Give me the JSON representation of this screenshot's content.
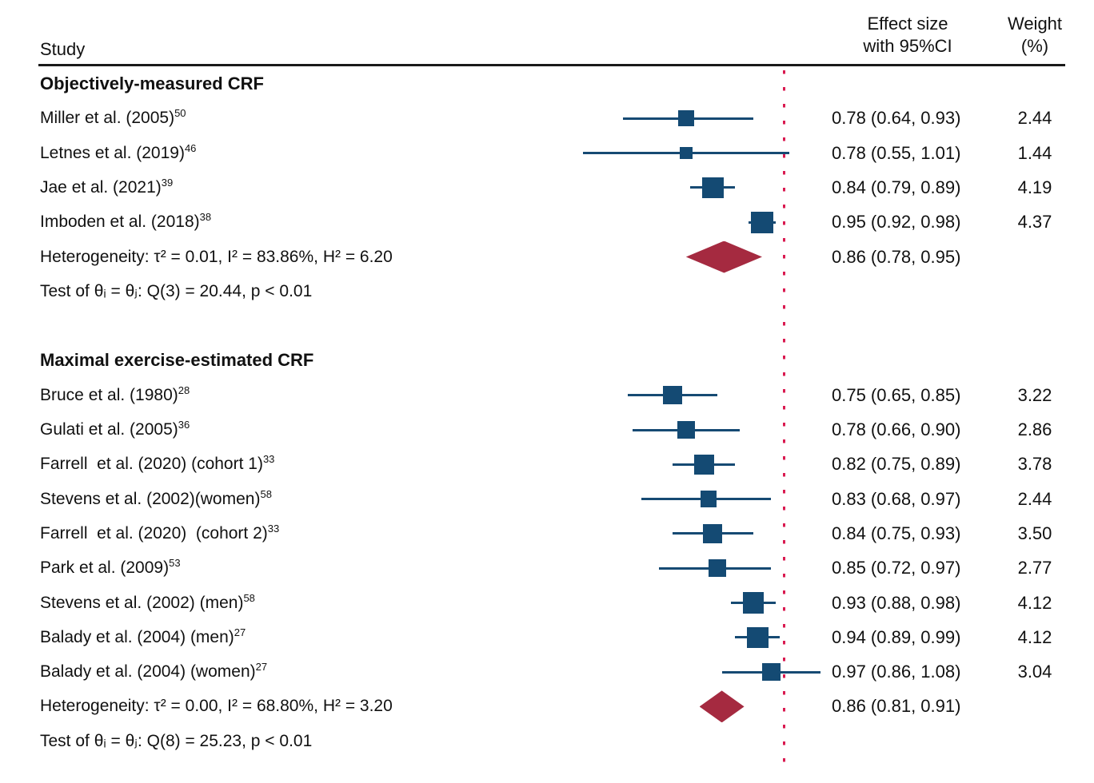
{
  "header": {
    "study_col": "Study",
    "effect_col_line1": "Effect size",
    "effect_col_line2": "with 95%CI",
    "weight_col_line1": "Weight",
    "weight_col_line2": "(%)"
  },
  "colors": {
    "square": "#144a73",
    "ci_line": "#164a73",
    "diamond": "#a52a40",
    "reference_line": "#d91a50",
    "rule": "#1a1a1a",
    "text": "#111111"
  },
  "chart_data": {
    "type": "forest",
    "x_reference_line": 1.0,
    "groups": [
      {
        "title": "Objectively-measured CRF",
        "studies": [
          {
            "label": "Miller et al. (2005)",
            "ref": "50",
            "est": 0.78,
            "lo": 0.64,
            "hi": 0.93,
            "effect": "0.78 (0.64, 0.93)",
            "weight": "2.44"
          },
          {
            "label": "Letnes et al. (2019)",
            "ref": "46",
            "est": 0.78,
            "lo": 0.55,
            "hi": 1.01,
            "effect": "0.78 (0.55, 1.01)",
            "weight": "1.44"
          },
          {
            "label": "Jae et al. (2021)",
            "ref": "39",
            "est": 0.84,
            "lo": 0.79,
            "hi": 0.89,
            "effect": "0.84 (0.79, 0.89)",
            "weight": "4.19"
          },
          {
            "label": "Imboden et al. (2018)",
            "ref": "38",
            "est": 0.95,
            "lo": 0.92,
            "hi": 0.98,
            "effect": "0.95 (0.92, 0.98)",
            "weight": "4.37"
          }
        ],
        "summary": {
          "label": "Heterogeneity: τ² = 0.01, I² = 83.86%, H² = 6.20",
          "est": 0.86,
          "lo": 0.78,
          "hi": 0.95,
          "effect": "0.86 (0.78, 0.95)"
        },
        "test": "Test of θᵢ = θⱼ: Q(3) = 20.44, p < 0.01"
      },
      {
        "title": "Maximal exercise-estimated CRF",
        "studies": [
          {
            "label": "Bruce et al. (1980)",
            "ref": "28",
            "est": 0.75,
            "lo": 0.65,
            "hi": 0.85,
            "effect": "0.75 (0.65, 0.85)",
            "weight": "3.22"
          },
          {
            "label": "Gulati et al. (2005)",
            "ref": "36",
            "est": 0.78,
            "lo": 0.66,
            "hi": 0.9,
            "effect": "0.78 (0.66, 0.90)",
            "weight": "2.86"
          },
          {
            "label": "Farrell  et al. (2020) (cohort 1)",
            "ref": "33",
            "est": 0.82,
            "lo": 0.75,
            "hi": 0.89,
            "effect": "0.82 (0.75, 0.89)",
            "weight": "3.78"
          },
          {
            "label": "Stevens et al. (2002)(women)",
            "ref": "58",
            "est": 0.83,
            "lo": 0.68,
            "hi": 0.97,
            "effect": "0.83 (0.68, 0.97)",
            "weight": "2.44"
          },
          {
            "label": "Farrell  et al. (2020)  (cohort 2)",
            "ref": "33",
            "est": 0.84,
            "lo": 0.75,
            "hi": 0.93,
            "effect": "0.84 (0.75, 0.93)",
            "weight": "3.50"
          },
          {
            "label": "Park et al. (2009)",
            "ref": "53",
            "est": 0.85,
            "lo": 0.72,
            "hi": 0.97,
            "effect": "0.85 (0.72, 0.97)",
            "weight": "2.77"
          },
          {
            "label": "Stevens et al. (2002) (men)",
            "ref": "58",
            "est": 0.93,
            "lo": 0.88,
            "hi": 0.98,
            "effect": "0.93 (0.88, 0.98)",
            "weight": "4.12"
          },
          {
            "label": "Balady et al. (2004) (men)",
            "ref": "27",
            "est": 0.94,
            "lo": 0.89,
            "hi": 0.99,
            "effect": "0.94 (0.89, 0.99)",
            "weight": "4.12"
          },
          {
            "label": "Balady et al. (2004) (women)",
            "ref": "27",
            "est": 0.97,
            "lo": 0.86,
            "hi": 1.08,
            "effect": "0.97 (0.86, 1.08)",
            "weight": "3.04"
          }
        ],
        "summary": {
          "label": "Heterogeneity: τ² = 0.00, I² = 68.80%, H² = 3.20",
          "est": 0.86,
          "lo": 0.81,
          "hi": 0.91,
          "effect": "0.86 (0.81, 0.91)"
        },
        "test": "Test of θᵢ = θⱼ: Q(8) = 25.23, p < 0.01"
      }
    ]
  }
}
